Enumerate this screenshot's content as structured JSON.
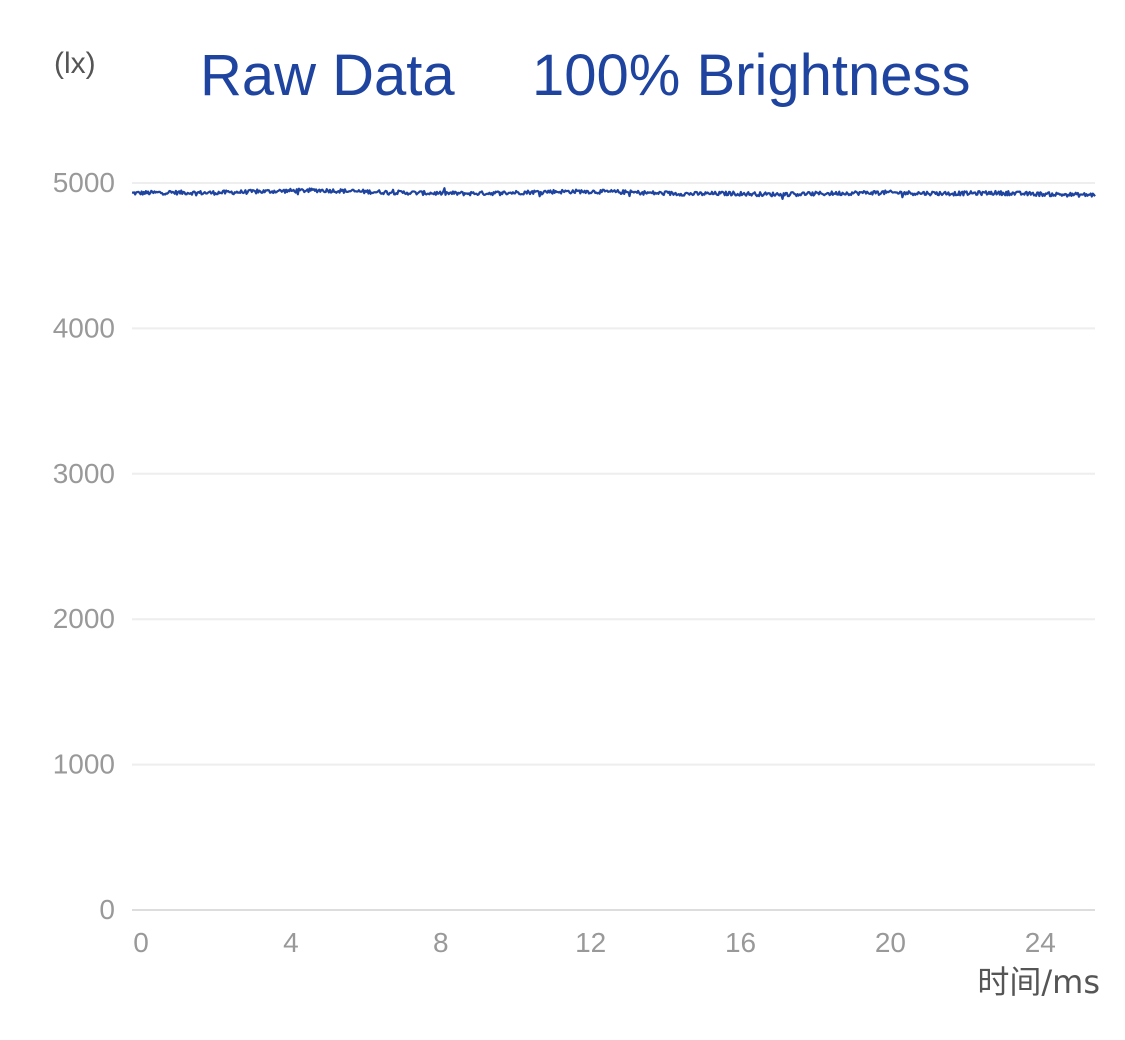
{
  "chart_data": {
    "type": "line",
    "title": "Raw Data",
    "subtitle": "100% Brightness",
    "ylabel": "(lx)",
    "xlabel": "时间/ms",
    "xlim": [
      0,
      25.7
    ],
    "ylim": [
      0,
      5000
    ],
    "x_ticks": [
      "0",
      "4",
      "8",
      "12",
      "16",
      "20",
      "24"
    ],
    "x_tick_values": [
      0,
      4,
      8,
      12,
      16,
      20,
      24
    ],
    "y_ticks": [
      "0",
      "1000",
      "2000",
      "3000",
      "4000",
      "5000"
    ],
    "y_tick_values": [
      0,
      1000,
      2000,
      3000,
      4000,
      5000
    ],
    "grid": true,
    "legend": "none",
    "colors": {
      "series": "#1e44a0",
      "title": "#1e44a0"
    },
    "series": [
      {
        "x": [
          0,
          1,
          2,
          3,
          4,
          5,
          6,
          7,
          8,
          9,
          10,
          11,
          12,
          13,
          14,
          15,
          16,
          17,
          18,
          19,
          20,
          21,
          22,
          23,
          24,
          25,
          25.7
        ],
        "values": [
          4930,
          4935,
          4932,
          4938,
          4945,
          4950,
          4942,
          4935,
          4930,
          4928,
          4932,
          4940,
          4942,
          4938,
          4930,
          4925,
          4928,
          4922,
          4925,
          4930,
          4935,
          4930,
          4928,
          4932,
          4925,
          4920,
          4918
        ]
      }
    ]
  }
}
